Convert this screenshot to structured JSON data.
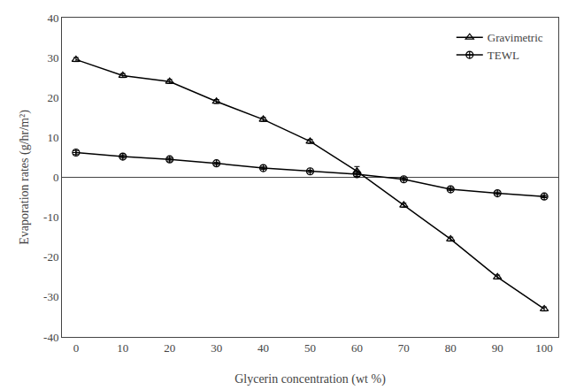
{
  "chart_data": {
    "type": "line",
    "xlabel": "Glycerin concentration (wt %)",
    "ylabel": "Evaporation rates (g/hr/m²)",
    "x": [
      0,
      10,
      20,
      30,
      40,
      50,
      60,
      70,
      80,
      90,
      100
    ],
    "series": [
      {
        "name": "Gravimetric",
        "color": "#000000",
        "marker": "triangle-up",
        "values": [
          29.5,
          25.5,
          24.0,
          19.0,
          14.5,
          9.0,
          1.5,
          -7.0,
          -15.5,
          -25.0,
          -33.0
        ],
        "errors": [
          0.5,
          0.5,
          0.5,
          0.5,
          0.5,
          0.5,
          1.2,
          0.5,
          0.5,
          0.5,
          0.5
        ]
      },
      {
        "name": "TEWL",
        "color": "#000000",
        "marker": "circle-cross",
        "values": [
          6.2,
          5.2,
          4.5,
          3.5,
          2.3,
          1.5,
          0.8,
          -0.5,
          -3.0,
          -4.0,
          -4.8
        ],
        "errors": [
          0.5,
          0.4,
          0.4,
          0.3,
          0.3,
          0.3,
          0.6,
          0.3,
          0.3,
          0.3,
          0.3
        ]
      }
    ],
    "xlim": [
      -3,
      103
    ],
    "ylim": [
      -40,
      40
    ],
    "xticks": [
      0,
      10,
      20,
      30,
      40,
      50,
      60,
      70,
      80,
      90,
      100
    ],
    "yticks": [
      -40,
      -30,
      -20,
      -10,
      0,
      10,
      20,
      30,
      40
    ],
    "grid": false,
    "legend": "upper right"
  }
}
